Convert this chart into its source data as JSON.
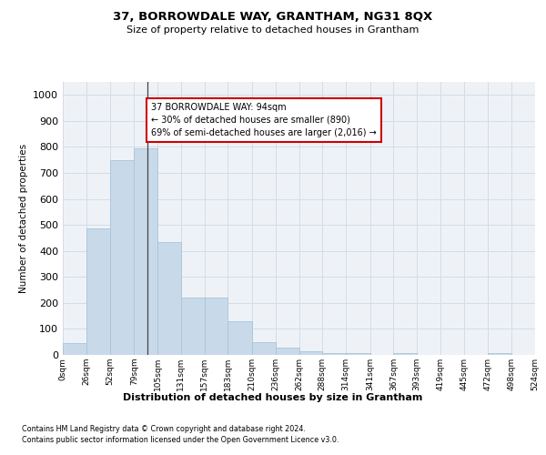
{
  "title": "37, BORROWDALE WAY, GRANTHAM, NG31 8QX",
  "subtitle": "Size of property relative to detached houses in Grantham",
  "xlabel": "Distribution of detached houses by size in Grantham",
  "ylabel": "Number of detached properties",
  "bar_values": [
    45,
    485,
    750,
    795,
    435,
    220,
    220,
    130,
    50,
    27,
    14,
    7,
    7,
    0,
    7,
    0,
    0,
    0,
    7,
    0
  ],
  "bin_edges": [
    0,
    26,
    52,
    79,
    105,
    131,
    157,
    183,
    210,
    236,
    262,
    288,
    314,
    341,
    367,
    393,
    419,
    445,
    472,
    498,
    524
  ],
  "tick_labels": [
    "0sqm",
    "26sqm",
    "52sqm",
    "79sqm",
    "105sqm",
    "131sqm",
    "157sqm",
    "183sqm",
    "210sqm",
    "236sqm",
    "262sqm",
    "288sqm",
    "314sqm",
    "341sqm",
    "367sqm",
    "393sqm",
    "419sqm",
    "445sqm",
    "472sqm",
    "498sqm",
    "524sqm"
  ],
  "bar_color": "#c8daea",
  "bar_edge_color": "#a8c4d8",
  "bg_color": "#eef2f7",
  "grid_color": "#d4dce6",
  "property_size": 94,
  "annotation_line1": "37 BORROWDALE WAY: 94sqm",
  "annotation_line2": "← 30% of detached houses are smaller (890)",
  "annotation_line3": "69% of semi-detached houses are larger (2,016) →",
  "annotation_box_color": "#ffffff",
  "annotation_box_edge": "#cc0000",
  "ylim": [
    0,
    1050
  ],
  "yticks": [
    0,
    100,
    200,
    300,
    400,
    500,
    600,
    700,
    800,
    900,
    1000
  ],
  "footnote1": "Contains HM Land Registry data © Crown copyright and database right 2024.",
  "footnote2": "Contains public sector information licensed under the Open Government Licence v3.0."
}
